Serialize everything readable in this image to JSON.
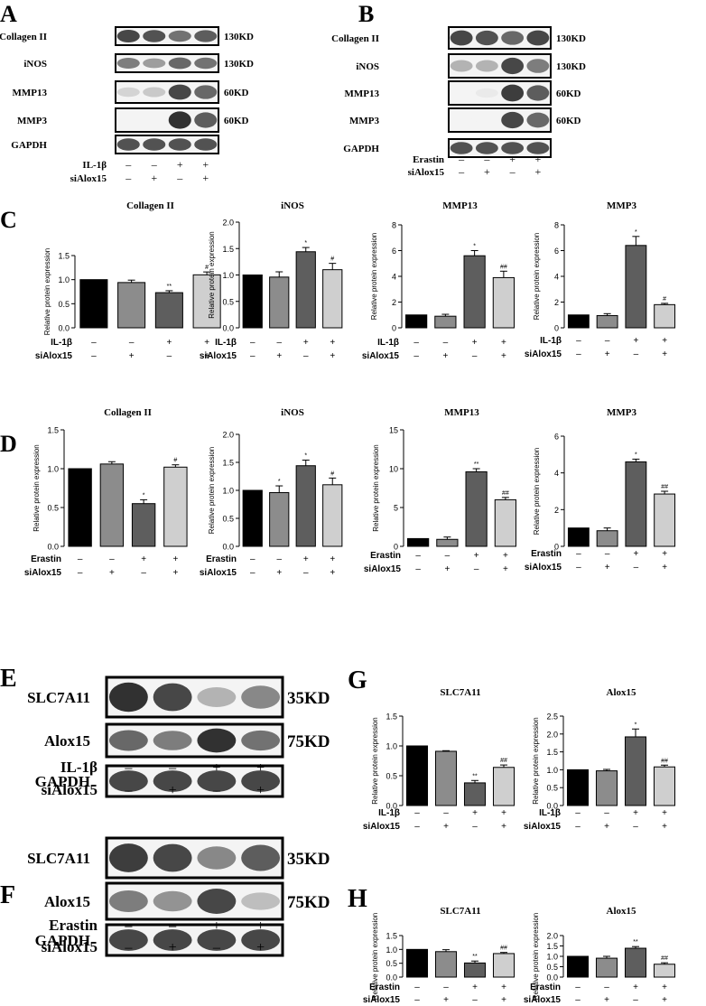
{
  "figure": {
    "panel_letters": [
      "A",
      "B",
      "C",
      "D",
      "E",
      "F",
      "G",
      "H"
    ],
    "sym": {
      "minus": "–",
      "plus": "+"
    },
    "blots": [
      {
        "id": "A",
        "rows": [
          {
            "label": "Collagen II",
            "kd": "130KD",
            "bands": [
              0.85,
              0.8,
              0.65,
              0.75
            ]
          },
          {
            "label": "iNOS",
            "kd": "130KD",
            "bands": [
              0.6,
              0.45,
              0.7,
              0.65
            ]
          },
          {
            "label": "MMP13",
            "kd": "60KD",
            "bands": [
              0.2,
              0.25,
              0.85,
              0.7
            ]
          },
          {
            "label": "MMP3",
            "kd": "60KD",
            "bands": [
              0.05,
              0.05,
              0.95,
              0.75
            ]
          },
          {
            "label": "GAPDH",
            "kd": "",
            "bands": [
              0.8,
              0.8,
              0.8,
              0.8
            ]
          }
        ],
        "treatments": [
          {
            "label": "IL-1β",
            "signs": [
              "-",
              "-",
              "+",
              "+"
            ]
          },
          {
            "label": "siAlox15",
            "signs": [
              "-",
              "+",
              "-",
              "+"
            ]
          }
        ]
      },
      {
        "id": "B",
        "rows": [
          {
            "label": "Collagen II",
            "kd": "130KD",
            "bands": [
              0.85,
              0.8,
              0.7,
              0.85
            ]
          },
          {
            "label": "iNOS",
            "kd": "130KD",
            "bands": [
              0.35,
              0.35,
              0.85,
              0.6
            ]
          },
          {
            "label": "MMP13",
            "kd": "60KD",
            "bands": [
              0.05,
              0.1,
              0.9,
              0.75
            ]
          },
          {
            "label": "MMP3",
            "kd": "60KD",
            "bands": [
              0.05,
              0.05,
              0.85,
              0.7
            ]
          },
          {
            "label": "GAPDH",
            "kd": "",
            "bands": [
              0.8,
              0.8,
              0.8,
              0.8
            ]
          }
        ],
        "treatments": [
          {
            "label": "Erastin",
            "signs": [
              "-",
              "-",
              "+",
              "+"
            ]
          },
          {
            "label": "siAlox15",
            "signs": [
              "-",
              "+",
              "-",
              "+"
            ]
          }
        ]
      },
      {
        "id": "E",
        "rows": [
          {
            "label": "SLC7A11",
            "kd": "35KD",
            "bands": [
              0.95,
              0.85,
              0.35,
              0.55
            ]
          },
          {
            "label": "Alox15",
            "kd": "75KD",
            "bands": [
              0.7,
              0.6,
              0.95,
              0.65
            ]
          },
          {
            "label": "GAPDH",
            "kd": "",
            "bands": [
              0.85,
              0.85,
              0.85,
              0.85
            ]
          }
        ],
        "treatments": [
          {
            "label": "IL-1β",
            "signs": [
              "-",
              "-",
              "+",
              "+"
            ]
          },
          {
            "label": "siAlox15",
            "signs": [
              "-",
              "+",
              "-",
              "+"
            ]
          }
        ]
      },
      {
        "id": "F",
        "rows": [
          {
            "label": "SLC7A11",
            "kd": "35KD",
            "bands": [
              0.9,
              0.85,
              0.55,
              0.75
            ]
          },
          {
            "label": "Alox15",
            "kd": "75KD",
            "bands": [
              0.6,
              0.5,
              0.85,
              0.3
            ]
          },
          {
            "label": "GAPDH",
            "kd": "",
            "bands": [
              0.85,
              0.85,
              0.85,
              0.85
            ]
          }
        ],
        "treatments": [
          {
            "label": "Erastin",
            "signs": [
              "-",
              "-",
              "+",
              "+"
            ]
          },
          {
            "label": "siAlox15",
            "signs": [
              "-",
              "+",
              "-",
              "+"
            ]
          }
        ]
      }
    ]
  },
  "chart_data": [
    {
      "type": "bar",
      "panel": "C",
      "title": "Collagen II",
      "ylabel": "Relative protein expression",
      "ylim": [
        0,
        1.5
      ],
      "yticks": [
        "0.0",
        "0.5",
        "1.0",
        "1.5"
      ],
      "values": [
        1.0,
        0.94,
        0.73,
        1.1
      ],
      "errors": [
        0,
        0.05,
        0.04,
        0.06
      ],
      "marks": [
        "",
        "",
        "**",
        "#"
      ],
      "colors": [
        "#000000",
        "#8c8c8c",
        "#5e5e5e",
        "#cfcfcf"
      ],
      "treatments": [
        {
          "label": "IL-1β",
          "signs": [
            "-",
            "-",
            "+",
            "+"
          ]
        },
        {
          "label": "siAlox15",
          "signs": [
            "-",
            "+",
            "-",
            "+"
          ]
        }
      ]
    },
    {
      "type": "bar",
      "panel": "C",
      "title": "iNOS",
      "ylabel": "Relative protein expression",
      "ylim": [
        0,
        2.0
      ],
      "yticks": [
        "0.0",
        "0.5",
        "1.0",
        "1.5",
        "2.0"
      ],
      "values": [
        1.0,
        0.96,
        1.44,
        1.1
      ],
      "errors": [
        0,
        0.1,
        0.08,
        0.12
      ],
      "marks": [
        "",
        "",
        "*",
        "#"
      ],
      "colors": [
        "#000000",
        "#8c8c8c",
        "#5e5e5e",
        "#cfcfcf"
      ],
      "treatments": [
        {
          "label": "IL-1β",
          "signs": [
            "-",
            "-",
            "+",
            "+"
          ]
        },
        {
          "label": "siAlox15",
          "signs": [
            "-",
            "+",
            "-",
            "+"
          ]
        }
      ]
    },
    {
      "type": "bar",
      "panel": "C",
      "title": "MMP13",
      "ylabel": "Relative protein expression",
      "ylim": [
        0,
        8
      ],
      "yticks": [
        "0",
        "2",
        "4",
        "6",
        "8"
      ],
      "values": [
        1.0,
        0.9,
        5.6,
        3.9
      ],
      "errors": [
        0,
        0.15,
        0.4,
        0.5
      ],
      "marks": [
        "",
        "",
        "*",
        "##"
      ],
      "colors": [
        "#000000",
        "#8c8c8c",
        "#5e5e5e",
        "#cfcfcf"
      ],
      "treatments": [
        {
          "label": "IL-1β",
          "signs": [
            "-",
            "-",
            "+",
            "+"
          ]
        },
        {
          "label": "siAlox15",
          "signs": [
            "-",
            "+",
            "-",
            "+"
          ]
        }
      ]
    },
    {
      "type": "bar",
      "panel": "C",
      "title": "MMP3",
      "ylabel": "Relative protein expression",
      "ylim": [
        0,
        8
      ],
      "yticks": [
        "0",
        "2",
        "4",
        "6",
        "8"
      ],
      "values": [
        1.0,
        0.95,
        6.4,
        1.8
      ],
      "errors": [
        0,
        0.15,
        0.7,
        0.1
      ],
      "marks": [
        "",
        "",
        "*",
        "#"
      ],
      "colors": [
        "#000000",
        "#8c8c8c",
        "#5e5e5e",
        "#cfcfcf"
      ],
      "treatments": [
        {
          "label": "IL-1β",
          "signs": [
            "-",
            "-",
            "+",
            "+"
          ]
        },
        {
          "label": "siAlox15",
          "signs": [
            "-",
            "+",
            "-",
            "+"
          ]
        }
      ]
    },
    {
      "type": "bar",
      "panel": "D",
      "title": "Collagen II",
      "ylabel": "Relative protein expression",
      "ylim": [
        0,
        1.5
      ],
      "yticks": [
        "0.0",
        "0.5",
        "1.0",
        "1.5"
      ],
      "values": [
        1.0,
        1.06,
        0.55,
        1.02
      ],
      "errors": [
        0,
        0.03,
        0.05,
        0.03
      ],
      "marks": [
        "",
        "",
        "*",
        "#"
      ],
      "colors": [
        "#000000",
        "#8c8c8c",
        "#5e5e5e",
        "#cfcfcf"
      ],
      "treatments": [
        {
          "label": "Erastin",
          "signs": [
            "-",
            "-",
            "+",
            "+"
          ]
        },
        {
          "label": "siAlox15",
          "signs": [
            "-",
            "+",
            "-",
            "+"
          ]
        }
      ]
    },
    {
      "type": "bar",
      "panel": "D",
      "title": "iNOS",
      "ylabel": "Relative protein expression",
      "ylim": [
        0,
        2.0
      ],
      "yticks": [
        "0.0",
        "0.5",
        "1.0",
        "1.5",
        "2.0"
      ],
      "values": [
        1.0,
        0.96,
        1.44,
        1.1
      ],
      "errors": [
        0,
        0.12,
        0.1,
        0.12
      ],
      "marks": [
        "",
        "*",
        "*",
        "#"
      ],
      "colors": [
        "#000000",
        "#8c8c8c",
        "#5e5e5e",
        "#cfcfcf"
      ],
      "treatments": [
        {
          "label": "Erastin",
          "signs": [
            "-",
            "-",
            "+",
            "+"
          ]
        },
        {
          "label": "siAlox15",
          "signs": [
            "-",
            "+",
            "-",
            "+"
          ]
        }
      ]
    },
    {
      "type": "bar",
      "panel": "D",
      "title": "MMP13",
      "ylabel": "Relative protein expression",
      "ylim": [
        0,
        15
      ],
      "yticks": [
        "0",
        "5",
        "10",
        "15"
      ],
      "values": [
        1.0,
        0.9,
        9.6,
        6.0
      ],
      "errors": [
        0,
        0.3,
        0.4,
        0.3
      ],
      "marks": [
        "",
        "",
        "**",
        "##"
      ],
      "colors": [
        "#000000",
        "#8c8c8c",
        "#5e5e5e",
        "#cfcfcf"
      ],
      "treatments": [
        {
          "label": "Erastin",
          "signs": [
            "-",
            "-",
            "+",
            "+"
          ]
        },
        {
          "label": "siAlox15",
          "signs": [
            "-",
            "+",
            "-",
            "+"
          ]
        }
      ]
    },
    {
      "type": "bar",
      "panel": "D",
      "title": "MMP3",
      "ylabel": "Relative protein expression",
      "ylim": [
        0,
        6
      ],
      "yticks": [
        "0",
        "2",
        "4",
        "6"
      ],
      "values": [
        1.0,
        0.85,
        4.6,
        2.85
      ],
      "errors": [
        0,
        0.15,
        0.15,
        0.15
      ],
      "marks": [
        "",
        "",
        "*",
        "##"
      ],
      "colors": [
        "#000000",
        "#8c8c8c",
        "#5e5e5e",
        "#cfcfcf"
      ],
      "treatments": [
        {
          "label": "Erastin",
          "signs": [
            "-",
            "-",
            "+",
            "+"
          ]
        },
        {
          "label": "siAlox15",
          "signs": [
            "-",
            "+",
            "-",
            "+"
          ]
        }
      ]
    },
    {
      "type": "bar",
      "panel": "G",
      "title": "SLC7A11",
      "ylabel": "Relative protein expression",
      "ylim": [
        0,
        1.5
      ],
      "yticks": [
        "0.0",
        "0.5",
        "1.0",
        "1.5"
      ],
      "values": [
        1.0,
        0.91,
        0.38,
        0.64
      ],
      "errors": [
        0,
        0.01,
        0.04,
        0.04
      ],
      "marks": [
        "",
        "",
        "**",
        "##"
      ],
      "colors": [
        "#000000",
        "#8c8c8c",
        "#5e5e5e",
        "#cfcfcf"
      ],
      "treatments": [
        {
          "label": "IL-1β",
          "signs": [
            "-",
            "-",
            "+",
            "+"
          ]
        },
        {
          "label": "siAlox15",
          "signs": [
            "-",
            "+",
            "-",
            "+"
          ]
        }
      ]
    },
    {
      "type": "bar",
      "panel": "G",
      "title": "Alox15",
      "ylabel": "Relative protein expression",
      "ylim": [
        0,
        2.5
      ],
      "yticks": [
        "0.0",
        "0.5",
        "1.0",
        "1.5",
        "2.0",
        "2.5"
      ],
      "values": [
        1.0,
        0.97,
        1.92,
        1.08
      ],
      "errors": [
        0,
        0.04,
        0.22,
        0.05
      ],
      "marks": [
        "",
        "",
        "*",
        "##"
      ],
      "colors": [
        "#000000",
        "#8c8c8c",
        "#5e5e5e",
        "#cfcfcf"
      ],
      "treatments": [
        {
          "label": "IL-1β",
          "signs": [
            "-",
            "-",
            "+",
            "+"
          ]
        },
        {
          "label": "siAlox15",
          "signs": [
            "-",
            "+",
            "-",
            "+"
          ]
        }
      ]
    },
    {
      "type": "bar",
      "panel": "H",
      "title": "SLC7A11",
      "ylabel": "Relative protein expression",
      "ylim": [
        0,
        1.5
      ],
      "yticks": [
        "0.0",
        "0.5",
        "1.0",
        "1.5"
      ],
      "values": [
        1.0,
        0.92,
        0.51,
        0.85
      ],
      "errors": [
        0,
        0.07,
        0.07,
        0.04
      ],
      "marks": [
        "",
        "",
        "**",
        "##"
      ],
      "colors": [
        "#000000",
        "#8c8c8c",
        "#5e5e5e",
        "#cfcfcf"
      ],
      "treatments": [
        {
          "label": "Erastin",
          "signs": [
            "-",
            "-",
            "+",
            "+"
          ]
        },
        {
          "label": "siAlox15",
          "signs": [
            "-",
            "+",
            "-",
            "+"
          ]
        }
      ]
    },
    {
      "type": "bar",
      "panel": "H",
      "title": "Alox15",
      "ylabel": "Relative protein expression",
      "ylim": [
        0,
        2.0
      ],
      "yticks": [
        "0.0",
        "0.5",
        "1.0",
        "1.5",
        "2.0"
      ],
      "values": [
        1.0,
        0.91,
        1.39,
        0.62
      ],
      "errors": [
        0,
        0.09,
        0.08,
        0.07
      ],
      "marks": [
        "",
        "",
        "**",
        "##"
      ],
      "colors": [
        "#000000",
        "#8c8c8c",
        "#5e5e5e",
        "#cfcfcf"
      ],
      "treatments": [
        {
          "label": "Erastin",
          "signs": [
            "-",
            "-",
            "+",
            "+"
          ]
        },
        {
          "label": "siAlox15",
          "signs": [
            "-",
            "+",
            "-",
            "+"
          ]
        }
      ]
    }
  ]
}
